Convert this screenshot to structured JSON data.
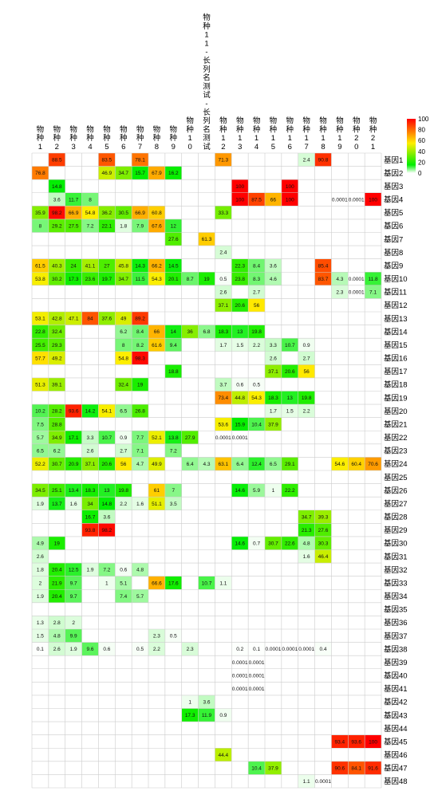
{
  "chart_data": {
    "type": "heatmap",
    "columns": [
      "物种1",
      "物种2",
      "物种3",
      "物种4",
      "物种5",
      "物种6",
      "物种7",
      "物种8",
      "物种9",
      "物种10",
      "物种11-长列名测试-长列名测试",
      "物种12",
      "物种13",
      "物种14",
      "物种15",
      "物种16",
      "物种17",
      "物种18",
      "物种19",
      "物种20",
      "物种21"
    ],
    "rows": [
      "基因1",
      "基因2",
      "基因3",
      "基因4",
      "基因5",
      "基因6",
      "基因7",
      "基因8",
      "基因9",
      "基因10",
      "基因11",
      "基因12",
      "基因13",
      "基因14",
      "基因15",
      "基因16",
      "基因17",
      "基因18",
      "基因19",
      "基因20",
      "基因21",
      "基因22",
      "基因23",
      "基因24",
      "基因25",
      "基因26",
      "基因27",
      "基因28",
      "基因29",
      "基因30",
      "基因31",
      "基因32",
      "基因33",
      "基因34",
      "基因35",
      "基因36",
      "基因37",
      "基因38",
      "基因39",
      "基因40",
      "基因41",
      "基因42",
      "基因43",
      "基因44",
      "基因45",
      "基因46",
      "基因47",
      "基因48"
    ],
    "values": [
      [
        null,
        88.5,
        null,
        null,
        83.5,
        null,
        78.1,
        null,
        null,
        null,
        null,
        71.3,
        null,
        null,
        null,
        null,
        2.4,
        90.8,
        null,
        null,
        null
      ],
      [
        76.8,
        null,
        null,
        null,
        46.9,
        34.7,
        15.7,
        67.9,
        16.2,
        null,
        null,
        null,
        null,
        null,
        null,
        null,
        null,
        null,
        null,
        null,
        null
      ],
      [
        null,
        14.8,
        null,
        null,
        null,
        null,
        null,
        null,
        null,
        null,
        null,
        null,
        100,
        null,
        null,
        100,
        null,
        null,
        null,
        null,
        null
      ],
      [
        null,
        3.6,
        11.7,
        8,
        null,
        null,
        null,
        null,
        null,
        null,
        null,
        null,
        100,
        87.5,
        66,
        100,
        null,
        null,
        0.0001,
        0.0001,
        100
      ],
      [
        35.9,
        98.2,
        66.9,
        54.8,
        36.2,
        30.5,
        66.9,
        60.8,
        null,
        null,
        null,
        33.3,
        null,
        null,
        null,
        null,
        null,
        null,
        null,
        null,
        null
      ],
      [
        8,
        29.2,
        27.5,
        7.2,
        22.1,
        1.8,
        7.9,
        67.6,
        12,
        null,
        null,
        null,
        null,
        null,
        null,
        null,
        null,
        null,
        null,
        null,
        null
      ],
      [
        null,
        null,
        null,
        null,
        null,
        null,
        null,
        null,
        27.6,
        null,
        61.3,
        null,
        null,
        null,
        null,
        null,
        null,
        null,
        null,
        null,
        null
      ],
      [
        null,
        null,
        null,
        null,
        null,
        null,
        null,
        null,
        null,
        null,
        null,
        2.4,
        null,
        null,
        null,
        null,
        null,
        null,
        null,
        null,
        null
      ],
      [
        61.5,
        40.3,
        24,
        41.1,
        27,
        45.8,
        14.3,
        66.2,
        14.5,
        null,
        null,
        null,
        22.3,
        8.4,
        3.6,
        null,
        null,
        85.4,
        null,
        null,
        null
      ],
      [
        53.8,
        30.2,
        17.3,
        23.6,
        19.7,
        34.7,
        11.5,
        54.3,
        20.1,
        8.7,
        19,
        0.5,
        23.8,
        8.3,
        4.6,
        null,
        null,
        83.7,
        4.3,
        0.0001,
        11.8
      ],
      [
        null,
        null,
        null,
        null,
        null,
        null,
        null,
        null,
        null,
        null,
        null,
        2.6,
        null,
        2.7,
        null,
        null,
        null,
        null,
        2.3,
        0.0001,
        7.1
      ],
      [
        null,
        null,
        null,
        null,
        null,
        null,
        null,
        null,
        null,
        null,
        null,
        37.1,
        20.6,
        56,
        null,
        null,
        null,
        null,
        null,
        null,
        null
      ],
      [
        53.1,
        42.8,
        47.1,
        84,
        37.6,
        49,
        89.2,
        null,
        null,
        null,
        null,
        null,
        null,
        null,
        null,
        null,
        null,
        null,
        null,
        null,
        null
      ],
      [
        22.8,
        32.4,
        null,
        null,
        null,
        6.2,
        8.4,
        66,
        14,
        36,
        6.8,
        18.3,
        13,
        19.8,
        null,
        null,
        null,
        null,
        null,
        null,
        null
      ],
      [
        25.5,
        29.3,
        null,
        null,
        null,
        8,
        8.2,
        61.6,
        9.4,
        null,
        null,
        1.7,
        1.5,
        2.2,
        3.3,
        10.7,
        0.9,
        null,
        null,
        null,
        null
      ],
      [
        57.7,
        49.2,
        null,
        null,
        null,
        54.8,
        98.3,
        null,
        null,
        null,
        null,
        null,
        null,
        null,
        2.6,
        null,
        2.7,
        null,
        null,
        null,
        null
      ],
      [
        null,
        null,
        null,
        null,
        null,
        null,
        null,
        null,
        18.8,
        null,
        null,
        null,
        null,
        null,
        37.1,
        20.6,
        56,
        null,
        null,
        null,
        null
      ],
      [
        51.3,
        39.1,
        null,
        null,
        null,
        32.4,
        19,
        null,
        null,
        null,
        null,
        3.7,
        0.6,
        0.5,
        null,
        null,
        null,
        null,
        null,
        null,
        null
      ],
      [
        null,
        null,
        null,
        null,
        null,
        null,
        null,
        null,
        null,
        null,
        null,
        73.4,
        44.8,
        54.3,
        18.3,
        13,
        19.8,
        null,
        null,
        null,
        null
      ],
      [
        10.2,
        28.2,
        93.6,
        14.2,
        54.1,
        6.5,
        26.8,
        null,
        null,
        null,
        null,
        null,
        null,
        null,
        1.7,
        1.5,
        2.2,
        null,
        null,
        null,
        null
      ],
      [
        7.5,
        28.8,
        null,
        null,
        null,
        null,
        null,
        null,
        null,
        null,
        null,
        53.6,
        15.9,
        10.4,
        37.9,
        null,
        null,
        null,
        null,
        null,
        null
      ],
      [
        5.7,
        34.9,
        17.1,
        3.3,
        10.7,
        0.9,
        7.7,
        52.1,
        13.8,
        27.9,
        null,
        0.0001,
        0.0001,
        null,
        null,
        null,
        null,
        null,
        null,
        null,
        null
      ],
      [
        6.5,
        6.2,
        null,
        2.6,
        null,
        2.7,
        7.1,
        null,
        7.2,
        null,
        null,
        null,
        null,
        null,
        null,
        null,
        null,
        null,
        null,
        null,
        null
      ],
      [
        52.2,
        30.7,
        20.9,
        37.1,
        20.6,
        56,
        4.7,
        49.9,
        null,
        6.4,
        4.3,
        63.1,
        6.4,
        12.4,
        6.5,
        29.1,
        null,
        null,
        54.6,
        60.4,
        70.6
      ],
      [
        null,
        null,
        null,
        null,
        null,
        null,
        null,
        null,
        null,
        null,
        null,
        null,
        null,
        null,
        null,
        null,
        null,
        null,
        null,
        null,
        null
      ],
      [
        34.5,
        25.1,
        13.4,
        18.3,
        13,
        19.8,
        null,
        61,
        7,
        null,
        null,
        null,
        14.6,
        5.9,
        1,
        22.2,
        null,
        null,
        null,
        null,
        null
      ],
      [
        1.9,
        13.7,
        1.6,
        34,
        14.8,
        2.2,
        1.6,
        51.1,
        3.5,
        null,
        null,
        null,
        null,
        null,
        null,
        null,
        null,
        null,
        null,
        null,
        null
      ],
      [
        null,
        null,
        null,
        16.7,
        3.6,
        null,
        null,
        null,
        null,
        null,
        null,
        null,
        null,
        null,
        null,
        null,
        34.7,
        39.3,
        null,
        null,
        null
      ],
      [
        null,
        null,
        null,
        93.8,
        98.2,
        null,
        null,
        null,
        null,
        null,
        null,
        null,
        null,
        null,
        null,
        null,
        21.3,
        27.6,
        null,
        null,
        null
      ],
      [
        4.9,
        19,
        null,
        null,
        null,
        null,
        null,
        null,
        null,
        null,
        null,
        null,
        14.6,
        0.7,
        30.7,
        22.6,
        4.8,
        30.3,
        null,
        null,
        null
      ],
      [
        2.6,
        null,
        null,
        null,
        null,
        null,
        null,
        null,
        null,
        null,
        null,
        null,
        null,
        null,
        null,
        null,
        1.6,
        46.4,
        null,
        null,
        null
      ],
      [
        1.8,
        20.4,
        12.5,
        1.9,
        7.2,
        0.6,
        4.8,
        null,
        null,
        null,
        null,
        null,
        null,
        null,
        null,
        null,
        null,
        null,
        null,
        null,
        null
      ],
      [
        2,
        21.9,
        9.7,
        null,
        1,
        5.1,
        null,
        66.6,
        17.6,
        null,
        10.7,
        1.1,
        null,
        null,
        null,
        null,
        null,
        null,
        null,
        null,
        null
      ],
      [
        1.9,
        20.4,
        9.7,
        null,
        null,
        7.4,
        5.7,
        null,
        null,
        null,
        null,
        null,
        null,
        null,
        null,
        null,
        null,
        null,
        null,
        null,
        null
      ],
      [
        null,
        null,
        null,
        null,
        null,
        null,
        null,
        null,
        null,
        null,
        null,
        null,
        null,
        null,
        null,
        null,
        null,
        null,
        null,
        null,
        null
      ],
      [
        1.3,
        2.8,
        2,
        null,
        null,
        null,
        null,
        null,
        null,
        null,
        null,
        null,
        null,
        null,
        null,
        null,
        null,
        null,
        null,
        null,
        null
      ],
      [
        1.5,
        4.8,
        9.9,
        null,
        null,
        null,
        null,
        2.3,
        0.5,
        null,
        null,
        null,
        null,
        null,
        null,
        null,
        null,
        null,
        null,
        null,
        null
      ],
      [
        0.1,
        2.6,
        1.9,
        9.6,
        0.6,
        null,
        0.5,
        2.2,
        null,
        2.3,
        null,
        null,
        0.2,
        0.1,
        0.0001,
        0.0001,
        0.0001,
        0.4,
        null,
        null,
        null
      ],
      [
        null,
        null,
        null,
        null,
        null,
        null,
        null,
        null,
        null,
        null,
        null,
        null,
        0.0001,
        0.0001,
        null,
        null,
        null,
        null,
        null,
        null,
        null
      ],
      [
        null,
        null,
        null,
        null,
        null,
        null,
        null,
        null,
        null,
        null,
        null,
        null,
        0.0001,
        0.0001,
        null,
        null,
        null,
        null,
        null,
        null,
        null
      ],
      [
        null,
        null,
        null,
        null,
        null,
        null,
        null,
        null,
        null,
        null,
        null,
        null,
        0.0001,
        0.0001,
        null,
        null,
        null,
        null,
        null,
        null,
        null
      ],
      [
        null,
        null,
        null,
        null,
        null,
        null,
        null,
        null,
        null,
        1,
        3.6,
        null,
        null,
        null,
        null,
        null,
        null,
        null,
        null,
        null,
        null
      ],
      [
        null,
        null,
        null,
        null,
        null,
        null,
        null,
        null,
        null,
        17.3,
        11.9,
        0.9,
        null,
        null,
        null,
        null,
        null,
        null,
        null,
        null,
        null
      ],
      [
        null,
        null,
        null,
        null,
        null,
        null,
        null,
        null,
        null,
        null,
        null,
        null,
        null,
        null,
        null,
        null,
        null,
        null,
        null,
        null,
        null
      ],
      [
        null,
        null,
        null,
        null,
        null,
        null,
        null,
        null,
        null,
        null,
        null,
        null,
        null,
        null,
        null,
        null,
        null,
        null,
        93.4,
        93.6,
        100
      ],
      [
        null,
        null,
        null,
        null,
        null,
        null,
        null,
        null,
        null,
        null,
        null,
        44.4,
        null,
        null,
        null,
        null,
        null,
        null,
        null,
        null,
        null
      ],
      [
        null,
        null,
        null,
        null,
        null,
        null,
        null,
        null,
        null,
        null,
        null,
        null,
        null,
        10.4,
        37.9,
        null,
        null,
        null,
        90.6,
        84.1,
        91.6
      ],
      [
        null,
        null,
        null,
        null,
        null,
        null,
        null,
        null,
        null,
        null,
        null,
        null,
        null,
        null,
        null,
        null,
        1.1,
        0.0001,
        null,
        null,
        null
      ]
    ],
    "color_scale": {
      "min": 0,
      "max": 100,
      "ticks": [
        0,
        20,
        40,
        60,
        80,
        100
      ],
      "stops": [
        "#ffffff",
        "#00ee00",
        "#ffee00",
        "#ff0000"
      ]
    },
    "legend_position": "top-right",
    "grid": true
  },
  "colors": {
    "grid": "#cccccc",
    "text": "#000000"
  }
}
